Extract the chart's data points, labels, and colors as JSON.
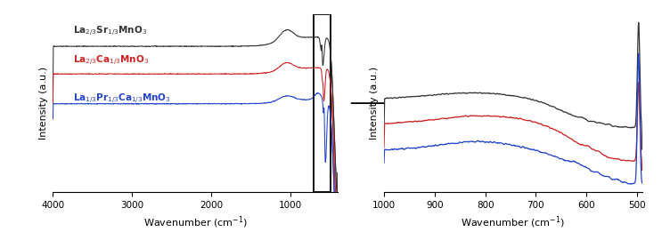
{
  "colors": [
    "#333333",
    "#cc2222",
    "#2244cc"
  ],
  "xlabel": "Wavenumber (cm⁻¹)",
  "ylabel": "Intensity (a.u.)",
  "lsmo_label": "La$_{2/3}$Sr$_{1/3}$MnO$_3$",
  "lcmo_label": "La$_{2/3}$Ca$_{1/3}$MnO$_3$",
  "lpcmo_label": "La$_{1/3}$Pr$_{1/3}$Ca$_{1/3}$MnO$_3$"
}
